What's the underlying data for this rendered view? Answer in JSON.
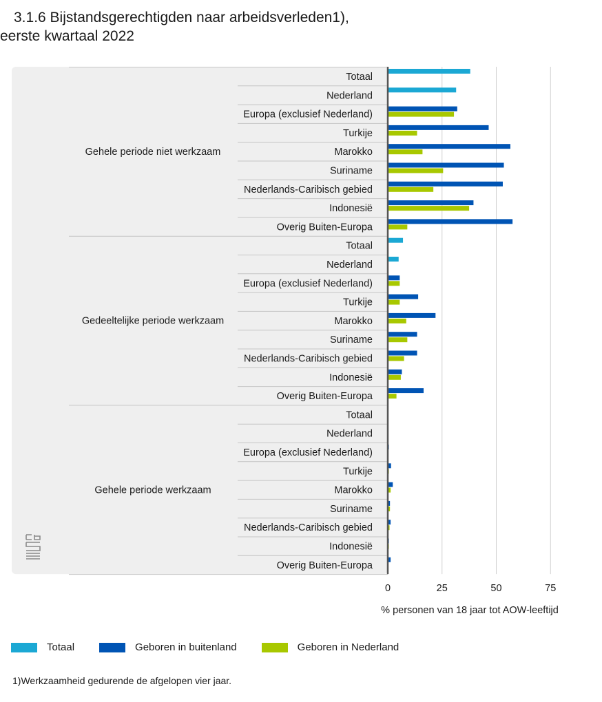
{
  "title_line1": "3.1.6 Bijstandsgerechtigden naar arbeidsverleden1),",
  "title_line2": "eerste kwartaal 2022",
  "footnote": "1)Werkzaamheid gedurende de afgelopen vier jaar.",
  "logo_icon": "cbs-logo-icon",
  "colors": {
    "totaal": "#1ba8d4",
    "buitenland": "#0054b4",
    "nederland": "#a8c800",
    "panel": "#efefef",
    "grid": "#d0d0d0",
    "axis": "#555555"
  },
  "chart_data": {
    "type": "bar",
    "orientation": "horizontal",
    "xlabel": "% personen van 18 jaar tot AOW-leeftijd",
    "xlim": [
      0,
      80
    ],
    "xticks": [
      0,
      25,
      50,
      75
    ],
    "grid": true,
    "legend_position": "bottom-left",
    "series": [
      {
        "key": "totaal",
        "name": "Totaal"
      },
      {
        "key": "buitenland",
        "name": "Geboren in buitenland"
      },
      {
        "key": "nederland",
        "name": "Geboren in Nederland"
      }
    ],
    "groups": [
      {
        "name": "Gehele periode niet werkzaam",
        "categories": [
          {
            "name": "Totaal",
            "totaal": 38
          },
          {
            "name": "Nederland",
            "totaal": 31.5
          },
          {
            "name": "Europa (exclusief Nederland)",
            "buitenland": 32,
            "nederland": 30.5
          },
          {
            "name": "Turkije",
            "buitenland": 46.5,
            "nederland": 13.5
          },
          {
            "name": "Marokko",
            "buitenland": 56.5,
            "nederland": 16
          },
          {
            "name": "Suriname",
            "buitenland": 53.5,
            "nederland": 25.5
          },
          {
            "name": "Nederlands-Caribisch gebied",
            "buitenland": 53,
            "nederland": 21
          },
          {
            "name": "Indonesië",
            "buitenland": 39.5,
            "nederland": 37.5
          },
          {
            "name": "Overig Buiten-Europa",
            "buitenland": 57.5,
            "nederland": 9
          }
        ]
      },
      {
        "name": "Gedeeltelijke periode werkzaam",
        "categories": [
          {
            "name": "Totaal",
            "totaal": 7
          },
          {
            "name": "Nederland",
            "totaal": 5
          },
          {
            "name": "Europa (exclusief Nederland)",
            "buitenland": 5.5,
            "nederland": 5.5
          },
          {
            "name": "Turkije",
            "buitenland": 14,
            "nederland": 5.5
          },
          {
            "name": "Marokko",
            "buitenland": 22,
            "nederland": 8.5
          },
          {
            "name": "Suriname",
            "buitenland": 13.5,
            "nederland": 9
          },
          {
            "name": "Nederlands-Caribisch gebied",
            "buitenland": 13.5,
            "nederland": 7.5
          },
          {
            "name": "Indonesië",
            "buitenland": 6.5,
            "nederland": 6
          },
          {
            "name": "Overig Buiten-Europa",
            "buitenland": 16.5,
            "nederland": 4
          }
        ]
      },
      {
        "name": "Gehele periode werkzaam",
        "categories": [
          {
            "name": "Totaal",
            "totaal": 0.3
          },
          {
            "name": "Nederland",
            "totaal": 0.2
          },
          {
            "name": "Europa (exclusief Nederland)",
            "buitenland": 0.5,
            "nederland": 0.3
          },
          {
            "name": "Turkije",
            "buitenland": 1.5,
            "nederland": 0.5
          },
          {
            "name": "Marokko",
            "buitenland": 2.3,
            "nederland": 1.3
          },
          {
            "name": "Suriname",
            "buitenland": 1,
            "nederland": 1
          },
          {
            "name": "Nederlands-Caribisch gebied",
            "buitenland": 1.3,
            "nederland": 0.8
          },
          {
            "name": "Indonesië",
            "buitenland": 0.5,
            "nederland": 0.5
          },
          {
            "name": "Overig Buiten-Europa",
            "buitenland": 1.3,
            "nederland": 0.3
          }
        ]
      }
    ]
  }
}
